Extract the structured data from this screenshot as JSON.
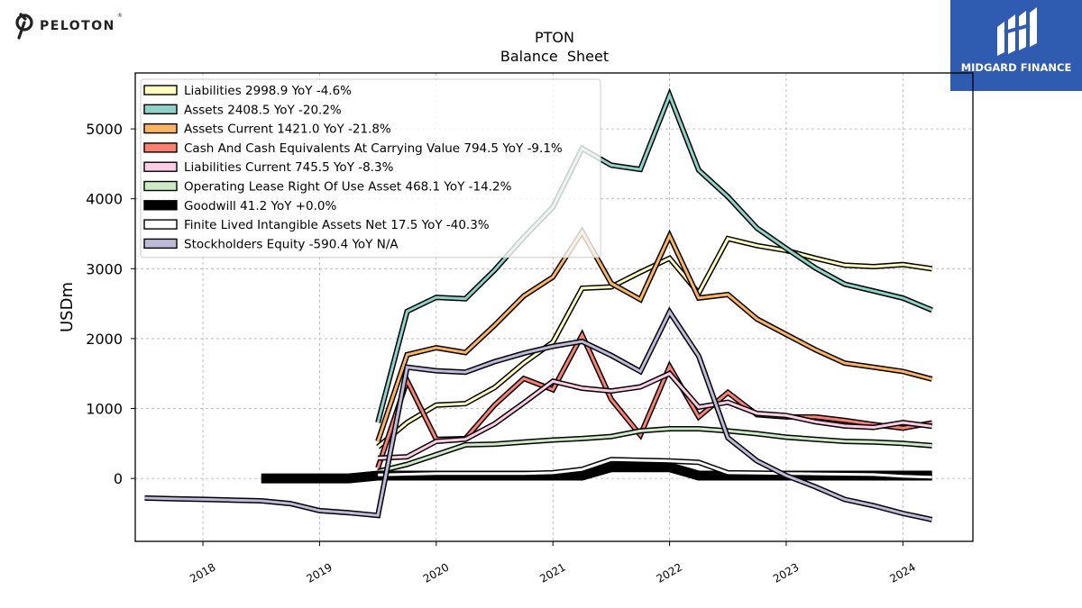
{
  "brand": {
    "left_logo": "PELOTON",
    "left_logo_tm": "®",
    "right_logo": "MIDGARD FINANCE"
  },
  "chart_data": {
    "type": "line",
    "title": "PTON",
    "subtitle": "Balance  Sheet",
    "xlabel": "",
    "ylabel": "USDm",
    "xlim": [
      2017.42,
      2024.6
    ],
    "ylim": [
      -900,
      5800
    ],
    "x_ticks": [
      2018,
      2019,
      2020,
      2021,
      2022,
      2023,
      2024
    ],
    "x_tick_labels": [
      "2018",
      "2019",
      "2020",
      "2021",
      "2022",
      "2023",
      "2024"
    ],
    "y_ticks": [
      0,
      1000,
      2000,
      3000,
      4000,
      5000
    ],
    "y_tick_labels": [
      "0",
      "1000",
      "2000",
      "3000",
      "4000",
      "5000"
    ],
    "grid": true,
    "legend_position": "top-left",
    "series": [
      {
        "name": "Liabilities  2998.9 YoY -4.6%",
        "color": "#ffffbf",
        "width": 3,
        "x": [
          2019.5,
          2019.75,
          2020.0,
          2020.25,
          2020.5,
          2020.75,
          2021.0,
          2021.25,
          2021.5,
          2021.75,
          2022.0,
          2022.25,
          2022.5,
          2022.75,
          2023.0,
          2023.25,
          2023.5,
          2023.75,
          2024.0,
          2024.25
        ],
        "y": [
          450,
          800,
          1050,
          1070,
          1300,
          1650,
          1950,
          2720,
          2740,
          2950,
          3150,
          2650,
          3430,
          3330,
          3260,
          3150,
          3050,
          3030,
          3060,
          2999
        ]
      },
      {
        "name": "Assets  2408.5 YoY -20.2%",
        "color": "#8dd3c7",
        "width": 3,
        "x": [
          2019.5,
          2019.75,
          2020.0,
          2020.25,
          2020.5,
          2020.75,
          2021.0,
          2021.25,
          2021.5,
          2021.75,
          2022.0,
          2022.25,
          2022.5,
          2022.75,
          2023.0,
          2023.25,
          2023.5,
          2023.75,
          2024.0,
          2024.25
        ],
        "y": [
          800,
          2390,
          2590,
          2570,
          2980,
          3450,
          3880,
          4720,
          4480,
          4420,
          5480,
          4410,
          4030,
          3580,
          3290,
          3010,
          2780,
          2680,
          2580,
          2408
        ]
      },
      {
        "name": "Assets Current  1421.0 YoY -21.8%",
        "color": "#fdb462",
        "width": 3,
        "x": [
          2019.5,
          2019.75,
          2020.0,
          2020.25,
          2020.5,
          2020.75,
          2021.0,
          2021.25,
          2021.5,
          2021.75,
          2022.0,
          2022.25,
          2022.5,
          2022.75,
          2023.0,
          2023.25,
          2023.5,
          2023.75,
          2024.0,
          2024.25
        ],
        "y": [
          530,
          1770,
          1870,
          1800,
          2190,
          2610,
          2880,
          3530,
          2790,
          2560,
          3470,
          2580,
          2630,
          2280,
          2060,
          1840,
          1650,
          1590,
          1530,
          1421
        ]
      },
      {
        "name": "Cash And Cash Equivalents At Carrying Value  794.5 YoY -9.1%",
        "color": "#fb8072",
        "width": 3,
        "x": [
          2019.5,
          2019.75,
          2020.0,
          2020.25,
          2020.5,
          2020.75,
          2021.0,
          2021.25,
          2021.5,
          2021.75,
          2022.0,
          2022.25,
          2022.5,
          2022.75,
          2023.0,
          2023.25,
          2023.5,
          2023.75,
          2024.0,
          2024.25
        ],
        "y": [
          150,
          1400,
          560,
          570,
          1050,
          1430,
          1270,
          2050,
          1130,
          620,
          1600,
          880,
          1230,
          910,
          880,
          880,
          830,
          770,
          720,
          794
        ]
      },
      {
        "name": "Liabilities Current  745.5 YoY -8.3%",
        "color": "#fccde5",
        "width": 3,
        "x": [
          2019.5,
          2019.75,
          2020.0,
          2020.25,
          2020.5,
          2020.75,
          2021.0,
          2021.25,
          2021.5,
          2021.75,
          2022.0,
          2022.25,
          2022.5,
          2022.75,
          2023.0,
          2023.25,
          2023.5,
          2023.75,
          2024.0,
          2024.25
        ],
        "y": [
          290,
          310,
          530,
          560,
          780,
          1080,
          1390,
          1290,
          1250,
          1310,
          1500,
          1020,
          1090,
          930,
          900,
          810,
          750,
          730,
          800,
          745
        ]
      },
      {
        "name": "Operating Lease Right Of Use Asset  468.1 YoY -14.2%",
        "color": "#ccebc5",
        "width": 3,
        "x": [
          2019.5,
          2019.75,
          2020.0,
          2020.25,
          2020.5,
          2020.75,
          2021.0,
          2021.25,
          2021.5,
          2021.75,
          2022.0,
          2022.25,
          2022.5,
          2022.75,
          2023.0,
          2023.25,
          2023.5,
          2023.75,
          2024.0,
          2024.25
        ],
        "y": [
          100,
          200,
          340,
          480,
          490,
          520,
          550,
          570,
          600,
          680,
          710,
          710,
          680,
          640,
          590,
          560,
          530,
          520,
          500,
          468
        ]
      },
      {
        "name": "Goodwill  41.2 YoY +0.0%",
        "color": "#000000",
        "width": 8,
        "x": [
          2018.5,
          2018.75,
          2019.0,
          2019.25,
          2019.5,
          2019.75,
          2020.0,
          2020.25,
          2020.5,
          2020.75,
          2021.0,
          2021.25,
          2021.5,
          2021.75,
          2022.0,
          2022.25,
          2022.5,
          2022.75,
          2023.0,
          2023.25,
          2023.5,
          2023.75,
          2024.0,
          2024.25
        ],
        "y": [
          0,
          0,
          0,
          0,
          40,
          40,
          40,
          40,
          40,
          40,
          40,
          40,
          160,
          160,
          160,
          40,
          40,
          40,
          40,
          40,
          40,
          40,
          41,
          41
        ]
      },
      {
        "name": "Finite Lived Intangible Assets Net  17.5 YoY -40.3%",
        "color": "#ffffff",
        "width": 3,
        "x": [
          2019.5,
          2019.75,
          2020.0,
          2020.25,
          2020.5,
          2020.75,
          2021.0,
          2021.25,
          2021.5,
          2021.75,
          2022.0,
          2022.25,
          2022.5,
          2022.75,
          2023.0,
          2023.25,
          2023.5,
          2023.75,
          2024.0,
          2024.25
        ],
        "y": [
          50,
          60,
          70,
          70,
          70,
          70,
          80,
          130,
          270,
          260,
          250,
          230,
          80,
          75,
          70,
          65,
          60,
          55,
          30,
          17.5
        ]
      },
      {
        "name": "Stockholders Equity  -590.4 YoY N/A",
        "color": "#bebada",
        "width": 3,
        "x": [
          2017.5,
          2017.75,
          2018.0,
          2018.25,
          2018.5,
          2018.75,
          2019.0,
          2019.25,
          2019.5,
          2019.75,
          2020.0,
          2020.25,
          2020.5,
          2020.75,
          2021.0,
          2021.25,
          2021.5,
          2021.75,
          2022.0,
          2022.25,
          2022.5,
          2022.75,
          2023.0,
          2023.25,
          2023.5,
          2023.75,
          2024.0,
          2024.25
        ],
        "y": [
          -280,
          -290,
          -300,
          -310,
          -320,
          -360,
          -460,
          -490,
          -530,
          1590,
          1540,
          1520,
          1670,
          1790,
          1890,
          1960,
          1760,
          1530,
          2380,
          1750,
          580,
          250,
          40,
          -120,
          -300,
          -390,
          -500,
          -590
        ]
      }
    ]
  }
}
